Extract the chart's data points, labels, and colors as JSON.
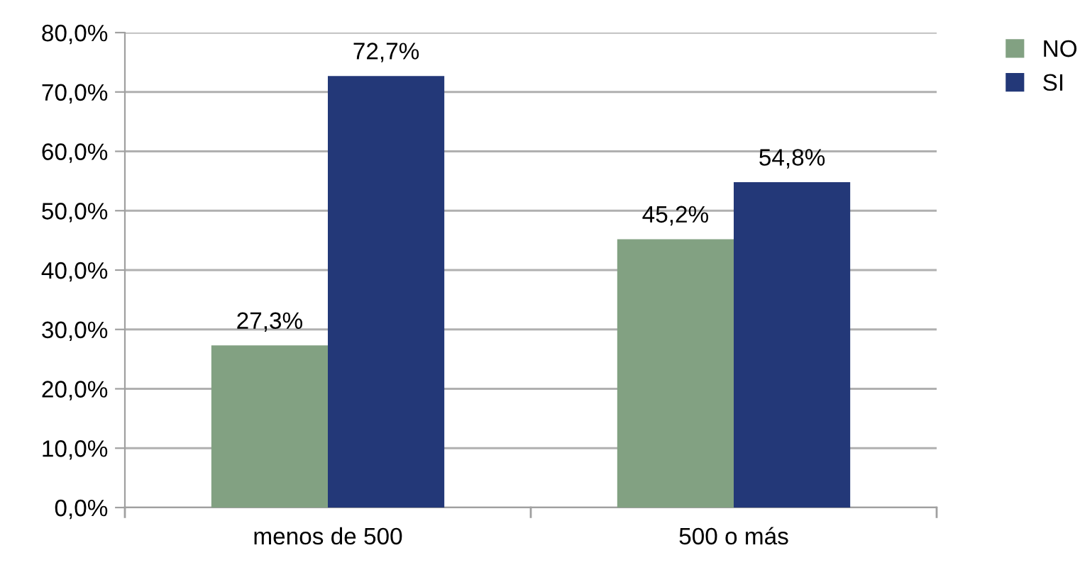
{
  "chart_data": {
    "type": "bar",
    "categories": [
      "menos de 500",
      "500 o más"
    ],
    "series": [
      {
        "name": "NO",
        "color": "#82a182",
        "values": [
          27.3,
          45.2
        ],
        "value_labels": [
          "27,3%",
          "45,2%"
        ]
      },
      {
        "name": "SI",
        "color": "#233878",
        "values": [
          72.7,
          54.8
        ],
        "value_labels": [
          "72,7%",
          "54,8%"
        ]
      }
    ],
    "ylim": [
      0,
      80
    ],
    "yticks": [
      {
        "value": 0,
        "label": "0,0%"
      },
      {
        "value": 10,
        "label": "10,0%"
      },
      {
        "value": 20,
        "label": "20,0%"
      },
      {
        "value": 30,
        "label": "30,0%"
      },
      {
        "value": 40,
        "label": "40,0%"
      },
      {
        "value": 50,
        "label": "50,0%"
      },
      {
        "value": 60,
        "label": "60,0%"
      },
      {
        "value": 70,
        "label": "70,0%"
      },
      {
        "value": 80,
        "label": "80,0%"
      }
    ],
    "grid": "y",
    "legend": "top right"
  }
}
